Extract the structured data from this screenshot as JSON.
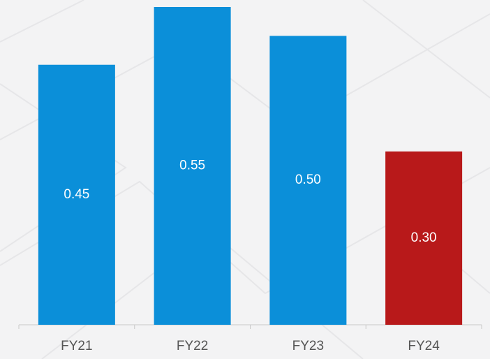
{
  "chart_data": {
    "type": "bar",
    "categories": [
      "FY21",
      "FY22",
      "FY23",
      "FY24"
    ],
    "values": [
      0.45,
      0.55,
      0.5,
      0.3
    ],
    "value_labels": [
      "0.45",
      "0.55",
      "0.50",
      "0.30"
    ],
    "colors": [
      "#0b8fd9",
      "#0b8fd9",
      "#0b8fd9",
      "#b8191a"
    ]
  }
}
